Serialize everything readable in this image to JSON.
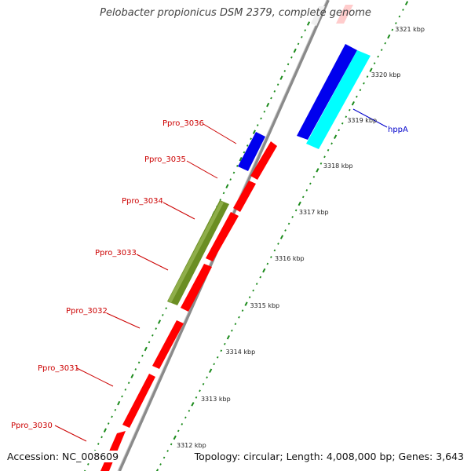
{
  "title": "Pelobacter propionicus DSM 2379, complete genome",
  "footer": {
    "accession": "Accession: NC_008609",
    "summary": "Topology: circular; Length: 4,008,000 bp; Genes: 3,643"
  },
  "colors": {
    "background": "#ffffff",
    "backbone": "#8a8a8a",
    "forward_gene": "#ff0000",
    "reverse_gene": "#0000ee",
    "rna_gene": "#00ffff",
    "feature": "#6b8e23",
    "tick_green": "#1a8a1a",
    "gene_label": "#cc0000",
    "gene_label_blue": "#0000cc"
  },
  "scale_labels": [
    {
      "text": "3312 kbp",
      "kbp": 3312
    },
    {
      "text": "3313 kbp",
      "kbp": 3313
    },
    {
      "text": "3314 kbp",
      "kbp": 3314
    },
    {
      "text": "3315 kbp",
      "kbp": 3315
    },
    {
      "text": "3316 kbp",
      "kbp": 3316
    },
    {
      "text": "3317 kbp",
      "kbp": 3317
    },
    {
      "text": "3318 kbp",
      "kbp": 3318
    },
    {
      "text": "3319 kbp",
      "kbp": 3319
    },
    {
      "text": "3320 kbp",
      "kbp": 3320
    },
    {
      "text": "3321 kbp",
      "kbp": 3321
    }
  ],
  "gene_labels": [
    {
      "text": "Ppro_3030",
      "strand": "forward"
    },
    {
      "text": "Ppro_3031",
      "strand": "forward"
    },
    {
      "text": "Ppro_3032",
      "strand": "forward"
    },
    {
      "text": "Ppro_3033",
      "strand": "forward"
    },
    {
      "text": "Ppro_3034",
      "strand": "forward"
    },
    {
      "text": "Ppro_3035",
      "strand": "forward"
    },
    {
      "text": "Ppro_3036",
      "strand": "reverse"
    },
    {
      "text": "hppA",
      "strand": "reverse"
    }
  ]
}
